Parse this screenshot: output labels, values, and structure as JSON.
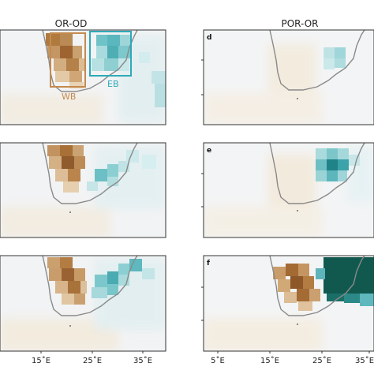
{
  "figure": {
    "left_title": "OR-OD",
    "right_title": "POR-OR",
    "left_xticks": [
      "15$^\\circ$E",
      "25$^\\circ$E",
      "35$^\\circ$E"
    ],
    "left_xticks_display": [
      "15˚E",
      "25˚E",
      "35˚E"
    ],
    "right_xticks_display": [
      "5˚E",
      "15˚E",
      "25˚E",
      "35˚E"
    ],
    "box_labels": {
      "wb": "WB",
      "eb": "EB"
    },
    "colors": {
      "brown": "#a0652a",
      "teal": "#1d8a8f",
      "coast": "#8a8a8a",
      "wb_box": "#c48a4e",
      "eb_box": "#2fa9b7"
    }
  },
  "chart_data": [
    {
      "type": "heatmap",
      "panel": "a",
      "title": "OR-OD",
      "letter": "",
      "xticks": [
        "15˚E",
        "25˚E",
        "35˚E"
      ],
      "boxes": [
        "WB",
        "EB"
      ]
    },
    {
      "type": "heatmap",
      "panel": "b",
      "title": "",
      "letter": "",
      "xticks": []
    },
    {
      "type": "heatmap",
      "panel": "c",
      "title": "",
      "letter": "",
      "xticks": [
        "15˚E",
        "25˚E",
        "35˚E"
      ]
    },
    {
      "type": "heatmap",
      "panel": "d",
      "title": "POR-OR",
      "letter": "d",
      "xticks": []
    },
    {
      "type": "heatmap",
      "panel": "e",
      "title": "",
      "letter": "e",
      "xticks": []
    },
    {
      "type": "heatmap",
      "panel": "f",
      "title": "",
      "letter": "f",
      "xticks": [
        "5˚E",
        "15˚E",
        "25˚E",
        "35˚E"
      ]
    }
  ]
}
